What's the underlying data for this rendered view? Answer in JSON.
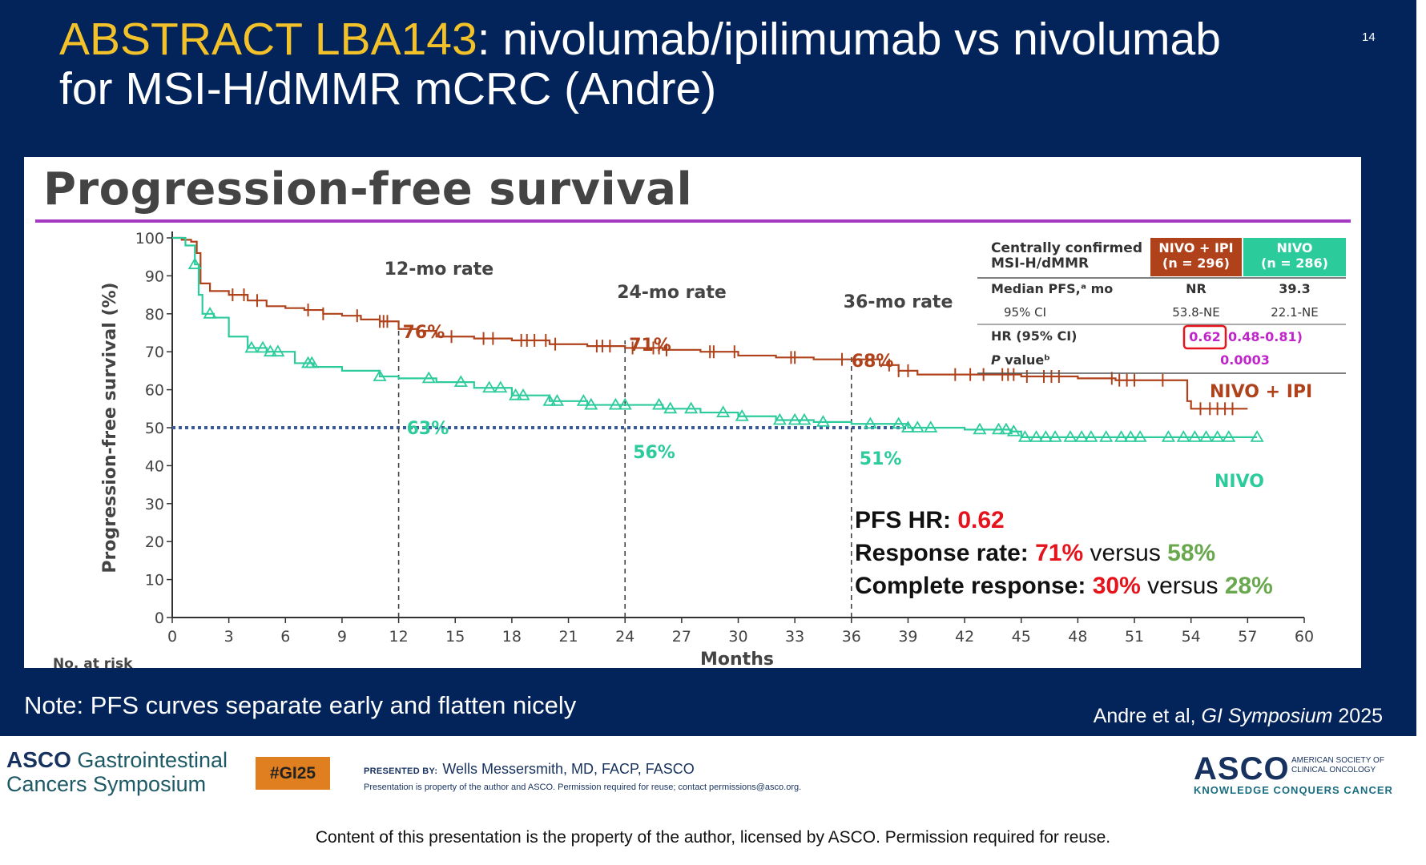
{
  "slide": {
    "title_highlight": "ABSTRACT LBA143",
    "title_line1_rest": ": nivolumab/ipilimumab vs nivolumab",
    "title_line2": "for MSI-H/dMMR mCRC (Andre)",
    "page_number": "14",
    "note": "Note: PFS curves separate early and flatten nicely",
    "citation_authors": "Andre et al, ",
    "citation_journal": "GI Symposium",
    "citation_year": " 2025"
  },
  "footer": {
    "meeting_logo_asco": "ASCO",
    "meeting_logo_line1": "Gastrointestinal",
    "meeting_logo_line2": "Cancers Symposium",
    "hashtag": "#GI25",
    "presented_by_label": "PRESENTED BY:",
    "presenter_name": "Wells Messersmith, MD, FACP, FASCO",
    "property_note": "Presentation is property of the author and ASCO. Permission required for reuse; contact permissions@asco.org.",
    "asco_logo": "ASCO",
    "asco_society": "AMERICAN SOCIETY OF CLINICAL ONCOLOGY",
    "asco_tagline": "KNOWLEDGE CONQUERS CANCER",
    "disclaimer": "Content of this presentation is the property of the author, licensed by ASCO. Permission required for reuse."
  },
  "colors": {
    "background": "#03245a",
    "title_highlight": "#f3c22a",
    "nivo_ipi": "#b0421b",
    "nivo": "#2ccb9c",
    "reference_line": "#3a5c9e",
    "title_rule": "#a53ac2",
    "red_emphasis": "#e5131c",
    "green_emphasis": "#6aa84f",
    "table_magenta": "#c025c9"
  },
  "chart_data": {
    "type": "line",
    "title": "Progression-free survival",
    "xlabel": "Months",
    "ylabel": "Progression-free survival (%)",
    "xlim": [
      0,
      60
    ],
    "ylim": [
      0,
      100
    ],
    "xticks": [
      0,
      3,
      6,
      9,
      12,
      15,
      18,
      21,
      24,
      27,
      30,
      33,
      36,
      39,
      42,
      45,
      48,
      51,
      54,
      57,
      60
    ],
    "yticks": [
      0,
      10,
      20,
      30,
      40,
      50,
      60,
      70,
      80,
      90,
      100
    ],
    "reference_line_y": 50,
    "no_at_risk_label": "No. at risk",
    "landmarks": [
      {
        "x": 12,
        "label": "12-mo rate",
        "nivo_ipi": "76%",
        "nivo": "63%"
      },
      {
        "x": 24,
        "label": "24-mo rate",
        "nivo_ipi": "71%",
        "nivo": "56%"
      },
      {
        "x": 36,
        "label": "36-mo rate",
        "nivo_ipi": "68%",
        "nivo": "51%"
      }
    ],
    "series": [
      {
        "name": "NIVO + IPI",
        "color": "#b0421b",
        "censor_marker": "tick",
        "x": [
          0,
          0.5,
          1.0,
          1.3,
          1.5,
          2.0,
          3.0,
          4.0,
          5.0,
          6.0,
          7.0,
          8.0,
          9.0,
          10.0,
          11.0,
          12.0,
          13.0,
          14.0,
          16.0,
          18.0,
          20.0,
          22.0,
          24.0,
          26.0,
          28.0,
          30.0,
          32.0,
          34.0,
          36.0,
          37.5,
          38.5,
          39.5,
          42.0,
          45.0,
          48.0,
          50.0,
          53.0,
          53.8,
          54.0,
          55.5,
          57.0
        ],
        "y": [
          100,
          99.5,
          99,
          96,
          88,
          86,
          85,
          83.5,
          82,
          81.5,
          81,
          80,
          79.5,
          78.5,
          78,
          76,
          75.5,
          74,
          73.5,
          73,
          72,
          71.5,
          71,
          70.5,
          70,
          69,
          68.5,
          68,
          68,
          66.5,
          65,
          64,
          64,
          63.5,
          63,
          62.5,
          62.5,
          57,
          55,
          55,
          55
        ],
        "censored_x": [
          3.2,
          3.8,
          4.5,
          7.2,
          8.0,
          9.8,
          11.0,
          11.2,
          11.4,
          14.8,
          16.5,
          17.0,
          18.5,
          18.8,
          19.2,
          19.8,
          20.3,
          22.5,
          22.8,
          23.2,
          24.4,
          25.5,
          25.8,
          26.2,
          28.5,
          28.7,
          29.8,
          32.8,
          33.0,
          35.5,
          38.0,
          38.5,
          39.0,
          41.5,
          42.3,
          43.0,
          44.0,
          44.3,
          44.6,
          45.3,
          46.2,
          46.6,
          47.0,
          49.8,
          50.2,
          50.6,
          51.0,
          52.5,
          54.5,
          55.0,
          55.4,
          55.8,
          56.2
        ]
      },
      {
        "name": "NIVO",
        "color": "#2ccb9c",
        "censor_marker": "triangle",
        "x": [
          0,
          0.7,
          1.2,
          1.4,
          1.6,
          2.2,
          3.0,
          4.0,
          5.0,
          6.5,
          7.5,
          9.0,
          11.0,
          12.0,
          14.0,
          16.0,
          18.0,
          20.0,
          22.0,
          24.0,
          26.0,
          28.0,
          30.0,
          32.0,
          34.0,
          36.0,
          39.0,
          42.0,
          44.5,
          45.0,
          50.0,
          57.0,
          57.5
        ],
        "y": [
          100,
          98,
          93,
          85,
          80,
          79,
          74,
          71,
          70,
          67,
          66,
          65,
          63.5,
          63,
          62,
          60.5,
          58.5,
          57,
          56,
          56,
          55,
          54,
          53,
          52,
          51.5,
          51,
          50,
          49.5,
          49,
          47.5,
          47.5,
          47.5,
          47.5
        ],
        "censored_x": [
          1.2,
          2.0,
          4.2,
          4.8,
          5.2,
          5.6,
          7.2,
          7.4,
          11.0,
          13.6,
          15.3,
          16.8,
          17.4,
          18.2,
          18.6,
          20.0,
          20.4,
          21.8,
          22.2,
          23.5,
          24.0,
          25.8,
          26.4,
          27.5,
          29.2,
          30.2,
          32.2,
          33.0,
          33.5,
          34.5,
          37.0,
          38.5,
          39.0,
          39.5,
          40.2,
          42.8,
          43.8,
          44.2,
          44.6,
          45.2,
          45.8,
          46.3,
          46.8,
          47.6,
          48.2,
          48.7,
          49.5,
          50.3,
          50.8,
          51.3,
          52.8,
          53.6,
          54.2,
          54.8,
          55.4,
          56.0,
          57.5
        ]
      }
    ],
    "series_labels": {
      "nivo_ipi": "NIVO + IPI",
      "nivo": "NIVO"
    },
    "summary_table": {
      "header": [
        "Centrally confirmed MSI-H/dMMR",
        "NIVO + IPI (n = 296)",
        "NIVO (n = 286)"
      ],
      "header_col0_line1": "Centrally confirmed",
      "header_col0_line2": "MSI-H/dMMR",
      "header_col1_line1": "NIVO + IPI",
      "header_col1_line2": "(n = 296)",
      "header_col2_line1": "NIVO",
      "header_col2_line2": "(n = 286)",
      "rows": [
        {
          "label": "Median PFS,ᵃ mo",
          "nivo_ipi": "NR",
          "nivo": "39.3"
        },
        {
          "label": "95% CI",
          "nivo_ipi": "53.8-NE",
          "nivo": "22.1-NE"
        },
        {
          "label": "HR (95% CI)",
          "hr": "0.62",
          "ci": "0.48-0.81)"
        },
        {
          "label_italic": "P",
          "label_rest": " valueᵇ",
          "value": "0.0003"
        }
      ]
    },
    "annotations": {
      "hr_label": "PFS HR: ",
      "hr_value": "0.62",
      "rr_label": "Response rate: ",
      "rr_nivo_ipi": "71%",
      "rr_versus": " versus ",
      "rr_nivo": "58%",
      "cr_label": "Complete response: ",
      "cr_nivo_ipi": "30%",
      "cr_versus": " versus ",
      "cr_nivo": "28%"
    }
  }
}
